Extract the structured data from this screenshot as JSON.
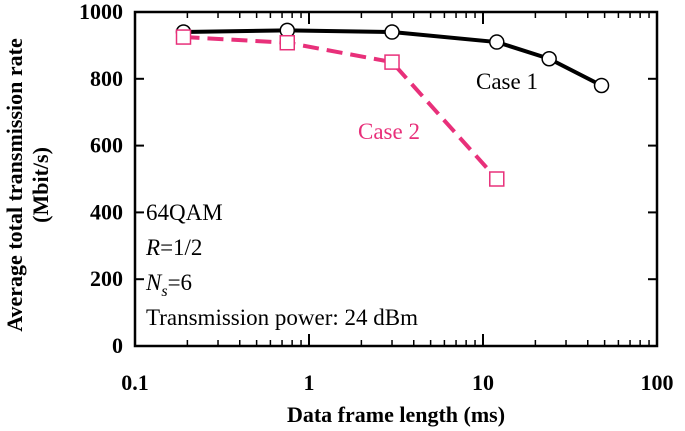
{
  "chart_data": {
    "type": "line",
    "xscale": "log",
    "xlim": [
      0.1,
      100
    ],
    "ylim": [
      0,
      1000
    ],
    "xlabel": "Data frame length (ms)",
    "ylabel_line1": "Average total transmission rate",
    "ylabel_line2": "(Mbit/s)",
    "x_ticks": [
      {
        "value": 0.1,
        "label": "0.1"
      },
      {
        "value": 1,
        "label": "1"
      },
      {
        "value": 10,
        "label": "10"
      },
      {
        "value": 100,
        "label": "100"
      }
    ],
    "y_ticks": [
      {
        "value": 0,
        "label": "0"
      },
      {
        "value": 200,
        "label": "200"
      },
      {
        "value": 400,
        "label": "400"
      },
      {
        "value": 600,
        "label": "600"
      },
      {
        "value": 800,
        "label": "800"
      },
      {
        "value": 1000,
        "label": "1000"
      }
    ],
    "series": [
      {
        "name": "Case 1",
        "color": "#000000",
        "line_style": "solid",
        "marker": "circle",
        "x": [
          0.19,
          0.75,
          3.0,
          12,
          24,
          48
        ],
        "y": [
          940,
          945,
          940,
          910,
          860,
          780
        ]
      },
      {
        "name": "Case 2",
        "color": "#e8307a",
        "line_style": "dashed",
        "marker": "square",
        "x": [
          0.19,
          0.75,
          3.0,
          12
        ],
        "y": [
          925,
          908,
          850,
          500
        ]
      }
    ],
    "annotations": {
      "line1": "64QAM",
      "line2_italic": "R",
      "line2_rest": "=1/2",
      "line3_italic": "N",
      "line3_sub": "s",
      "line3_rest": "=6",
      "line4": "Transmission power: 24 dBm"
    }
  }
}
